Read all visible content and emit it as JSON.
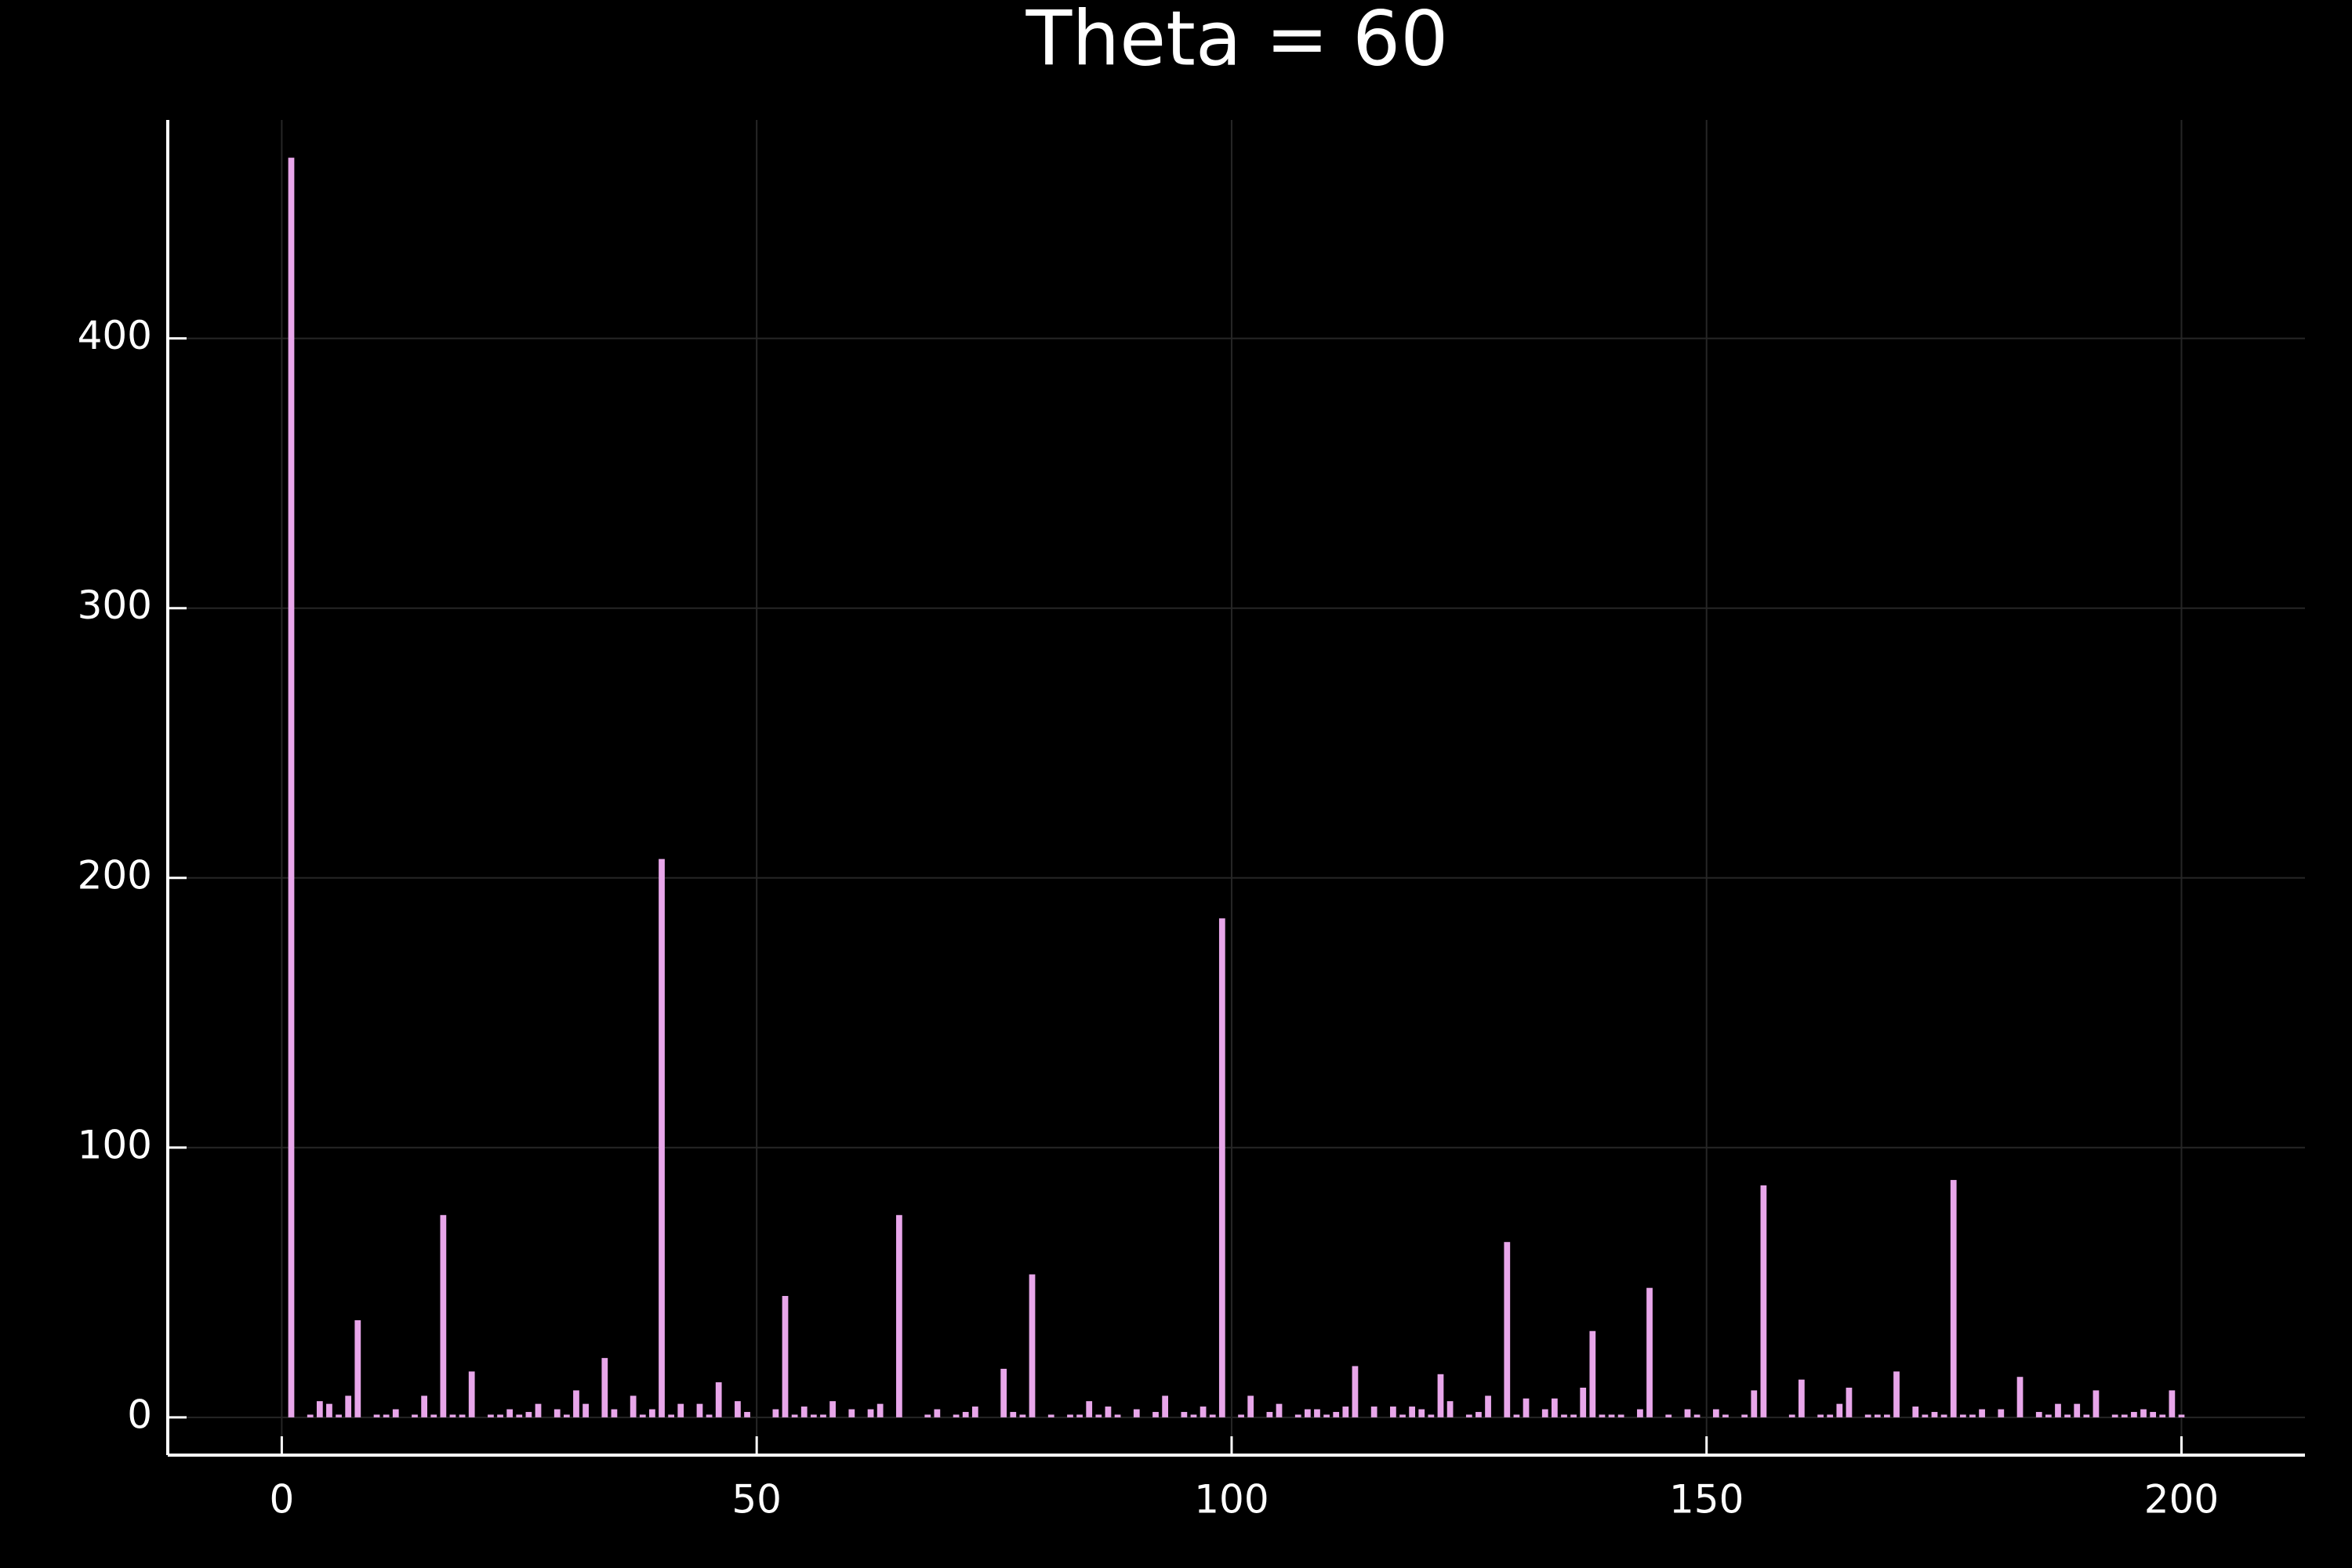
{
  "chart_data": {
    "type": "bar",
    "title": "Theta = 60",
    "x": [
      1,
      3,
      4,
      5,
      6,
      7,
      8,
      10,
      11,
      12,
      14,
      15,
      16,
      17,
      18,
      19,
      20,
      22,
      23,
      24,
      25,
      26,
      27,
      29,
      30,
      31,
      32,
      34,
      35,
      37,
      38,
      39,
      40,
      41,
      42,
      44,
      45,
      46,
      48,
      49,
      52,
      53,
      54,
      55,
      56,
      57,
      58,
      60,
      62,
      63,
      65,
      68,
      69,
      71,
      72,
      73,
      76,
      77,
      78,
      79,
      81,
      83,
      84,
      85,
      86,
      87,
      88,
      90,
      92,
      93,
      95,
      96,
      97,
      98,
      99,
      101,
      102,
      104,
      105,
      107,
      108,
      109,
      110,
      111,
      112,
      113,
      115,
      117,
      118,
      119,
      120,
      121,
      122,
      123,
      125,
      126,
      127,
      129,
      130,
      131,
      133,
      134,
      135,
      136,
      137,
      138,
      139,
      140,
      141,
      143,
      144,
      146,
      148,
      149,
      151,
      152,
      154,
      155,
      156,
      159,
      160,
      162,
      163,
      164,
      165,
      167,
      168,
      169,
      170,
      172,
      173,
      174,
      175,
      176,
      177,
      178,
      179,
      181,
      183,
      185,
      186,
      187,
      188,
      189,
      190,
      191,
      193,
      194,
      195,
      196,
      197,
      198,
      199,
      200
    ],
    "values": [
      467,
      1,
      6,
      5,
      1,
      8,
      36,
      1,
      1,
      3,
      1,
      8,
      1,
      75,
      1,
      1,
      17,
      1,
      1,
      3,
      1,
      2,
      5,
      3,
      1,
      10,
      5,
      22,
      3,
      8,
      1,
      3,
      207,
      1,
      5,
      5,
      1,
      13,
      6,
      2,
      3,
      45,
      1,
      4,
      1,
      1,
      6,
      3,
      3,
      5,
      75,
      1,
      3,
      1,
      2,
      4,
      18,
      2,
      1,
      53,
      1,
      1,
      1,
      6,
      1,
      4,
      1,
      3,
      2,
      8,
      2,
      1,
      4,
      1,
      185,
      1,
      8,
      2,
      5,
      1,
      3,
      3,
      1,
      2,
      4,
      19,
      4,
      4,
      1,
      4,
      3,
      1,
      16,
      6,
      1,
      2,
      8,
      65,
      1,
      7,
      3,
      7,
      1,
      1,
      11,
      32,
      1,
      1,
      1,
      3,
      48,
      1,
      3,
      1,
      3,
      1,
      1,
      10,
      86,
      1,
      14,
      1,
      1,
      5,
      11,
      1,
      1,
      1,
      17,
      4,
      1,
      2,
      1,
      88,
      1,
      1,
      3,
      3,
      15,
      2,
      1,
      5,
      1,
      5,
      1,
      10,
      1,
      1,
      2,
      3,
      2,
      1,
      10,
      1
    ],
    "color": "#e8a6ea",
    "xlim": [
      -12,
      213
    ],
    "ylim": [
      -14,
      481
    ],
    "xticks": [
      0,
      50,
      100,
      150,
      200
    ],
    "yticks": [
      0,
      100,
      200,
      300,
      400
    ],
    "grid": true
  }
}
